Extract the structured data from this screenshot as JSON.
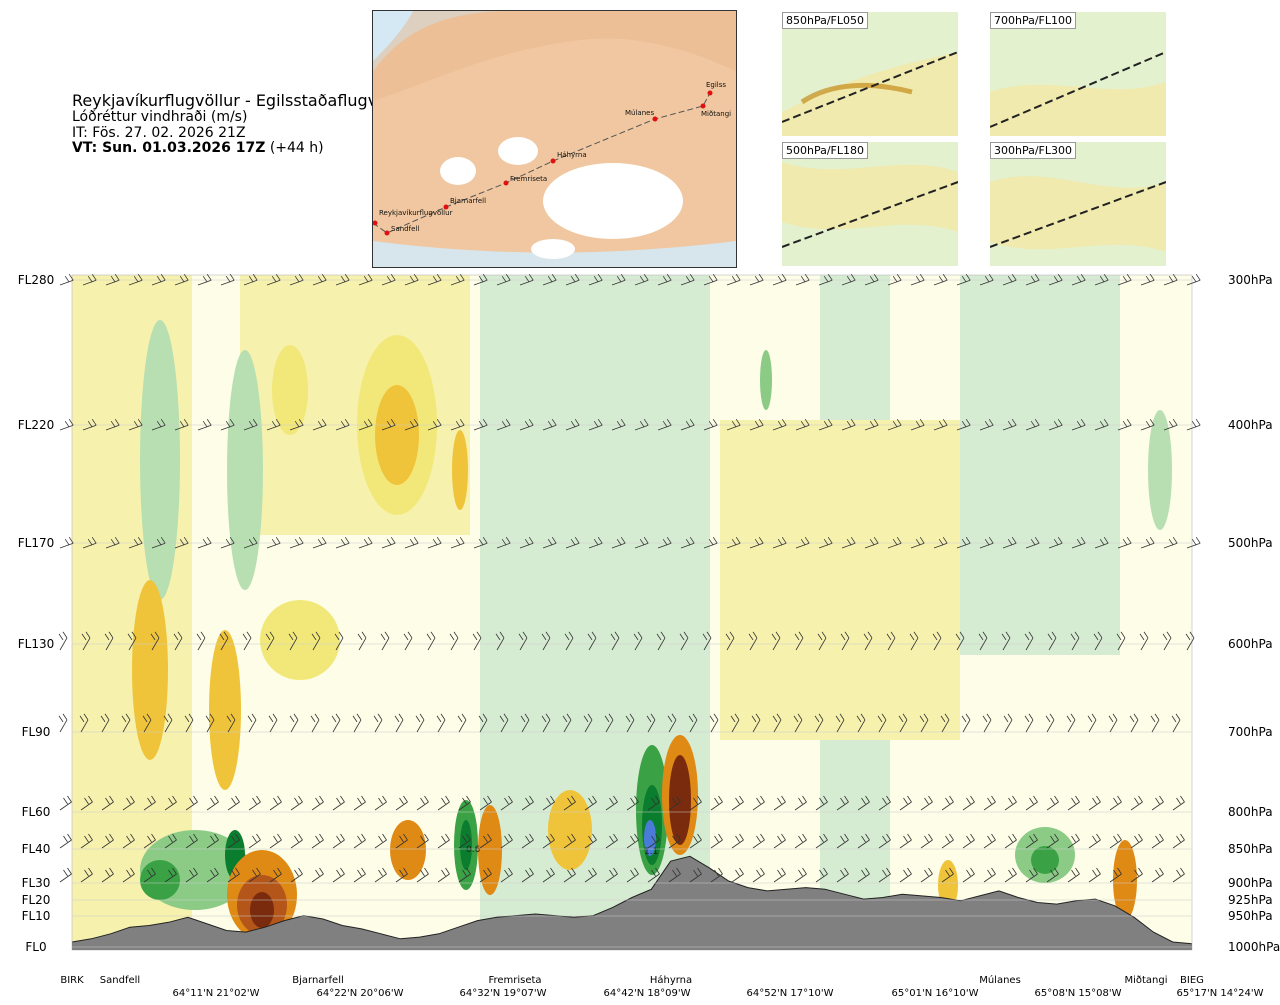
{
  "header": {
    "route": "Reykjavíkurflugvöllur - Egilsstaðaflugvöllur",
    "variable": "Lóðréttur vindhraði (m/s)",
    "issue_time": "IT: Fös. 27. 02. 2026 21Z",
    "valid_time_bold": "VT: Sun. 01.03.2026 17Z",
    "valid_offset": "(+44 h)"
  },
  "map": {
    "stations": [
      "Reykjavíkurflugvöllur",
      "Sandfell",
      "Bjarnarfell",
      "Fremriseta",
      "Háhyrna",
      "Múlanes",
      "Egilss",
      "Miðtangi"
    ],
    "colors": {
      "sea": "#d4e9f4",
      "land": "#f0c7a0",
      "glacier": "#ffffff",
      "route": "#555555",
      "station": "#e01010"
    }
  },
  "mini_maps": [
    {
      "label": "850hPa/FL050"
    },
    {
      "label": "700hPa/FL100"
    },
    {
      "label": "500hPa/FL180"
    },
    {
      "label": "300hPa/FL300"
    }
  ],
  "chart_data": {
    "type": "heatmap",
    "title": "Lóðréttur vindhraði (m/s)",
    "y_left_labels": [
      "FL280",
      "FL220",
      "FL170",
      "FL130",
      "FL90",
      "FL60",
      "FL40",
      "FL30",
      "FL20",
      "FL10",
      "FL0"
    ],
    "y_right_labels": [
      "300hPa",
      "400hPa",
      "500hPa",
      "600hPa",
      "700hPa",
      "800hPa",
      "850hPa",
      "900hPa",
      "925hPa",
      "950hPa",
      "1000hPa"
    ],
    "y_fl_values": [
      280,
      220,
      170,
      130,
      90,
      60,
      40,
      30,
      20,
      10,
      0
    ],
    "x_stations": [
      "BIRK",
      "Sandfell",
      "Bjarnarfell",
      "Fremriseta",
      "Háhyrna",
      "Múlanes",
      "Miðtangi",
      "BIEG"
    ],
    "x_coords": [
      "64°11'N 21°02'W",
      "64°22'N 20°06'W",
      "64°32'N 19°07'W",
      "64°42'N 18°09'W",
      "64°52'N 17°10'W",
      "65°01'N 16°10'W",
      "65°08'N 15°08'W",
      "65°17'N 14°24'W"
    ],
    "contour_labels": [
      "0.6",
      "1.1"
    ],
    "terrain_fl_profile": [
      0.3,
      0.5,
      0.8,
      1.2,
      1.3,
      1.5,
      1.8,
      1.4,
      1.0,
      0.9,
      1.2,
      1.6,
      1.9,
      1.7,
      1.3,
      1.1,
      0.8,
      0.5,
      0.6,
      0.8,
      1.2,
      1.6,
      1.8,
      1.9,
      2.0,
      1.9,
      1.8,
      1.9,
      2.4,
      3.0,
      3.5,
      5.2,
      5.5,
      4.8,
      4.0,
      3.6,
      3.4,
      3.5,
      3.6,
      3.5,
      3.2,
      2.9,
      3.0,
      3.2,
      3.1,
      3.0,
      2.8,
      3.1,
      3.4,
      3.0,
      2.7,
      2.6,
      2.8,
      2.9,
      2.5,
      1.8,
      0.9,
      0.3,
      0.2
    ],
    "colors": {
      "strong_down_dark": "#7a2b0d",
      "down_3": "#b4561a",
      "down_2": "#e08a16",
      "down_1": "#f0c43a",
      "down_05": "#f2e87a",
      "down_02": "#f7f1ae",
      "neutral": "#fdfde8",
      "up_02": "#d6ecd2",
      "up_05": "#b8dfb2",
      "up_1": "#8bcb86",
      "up_2": "#3aa145",
      "up_3": "#0b7d2e",
      "up_strong": "#4a7bd8",
      "terrain": "#808080"
    }
  }
}
